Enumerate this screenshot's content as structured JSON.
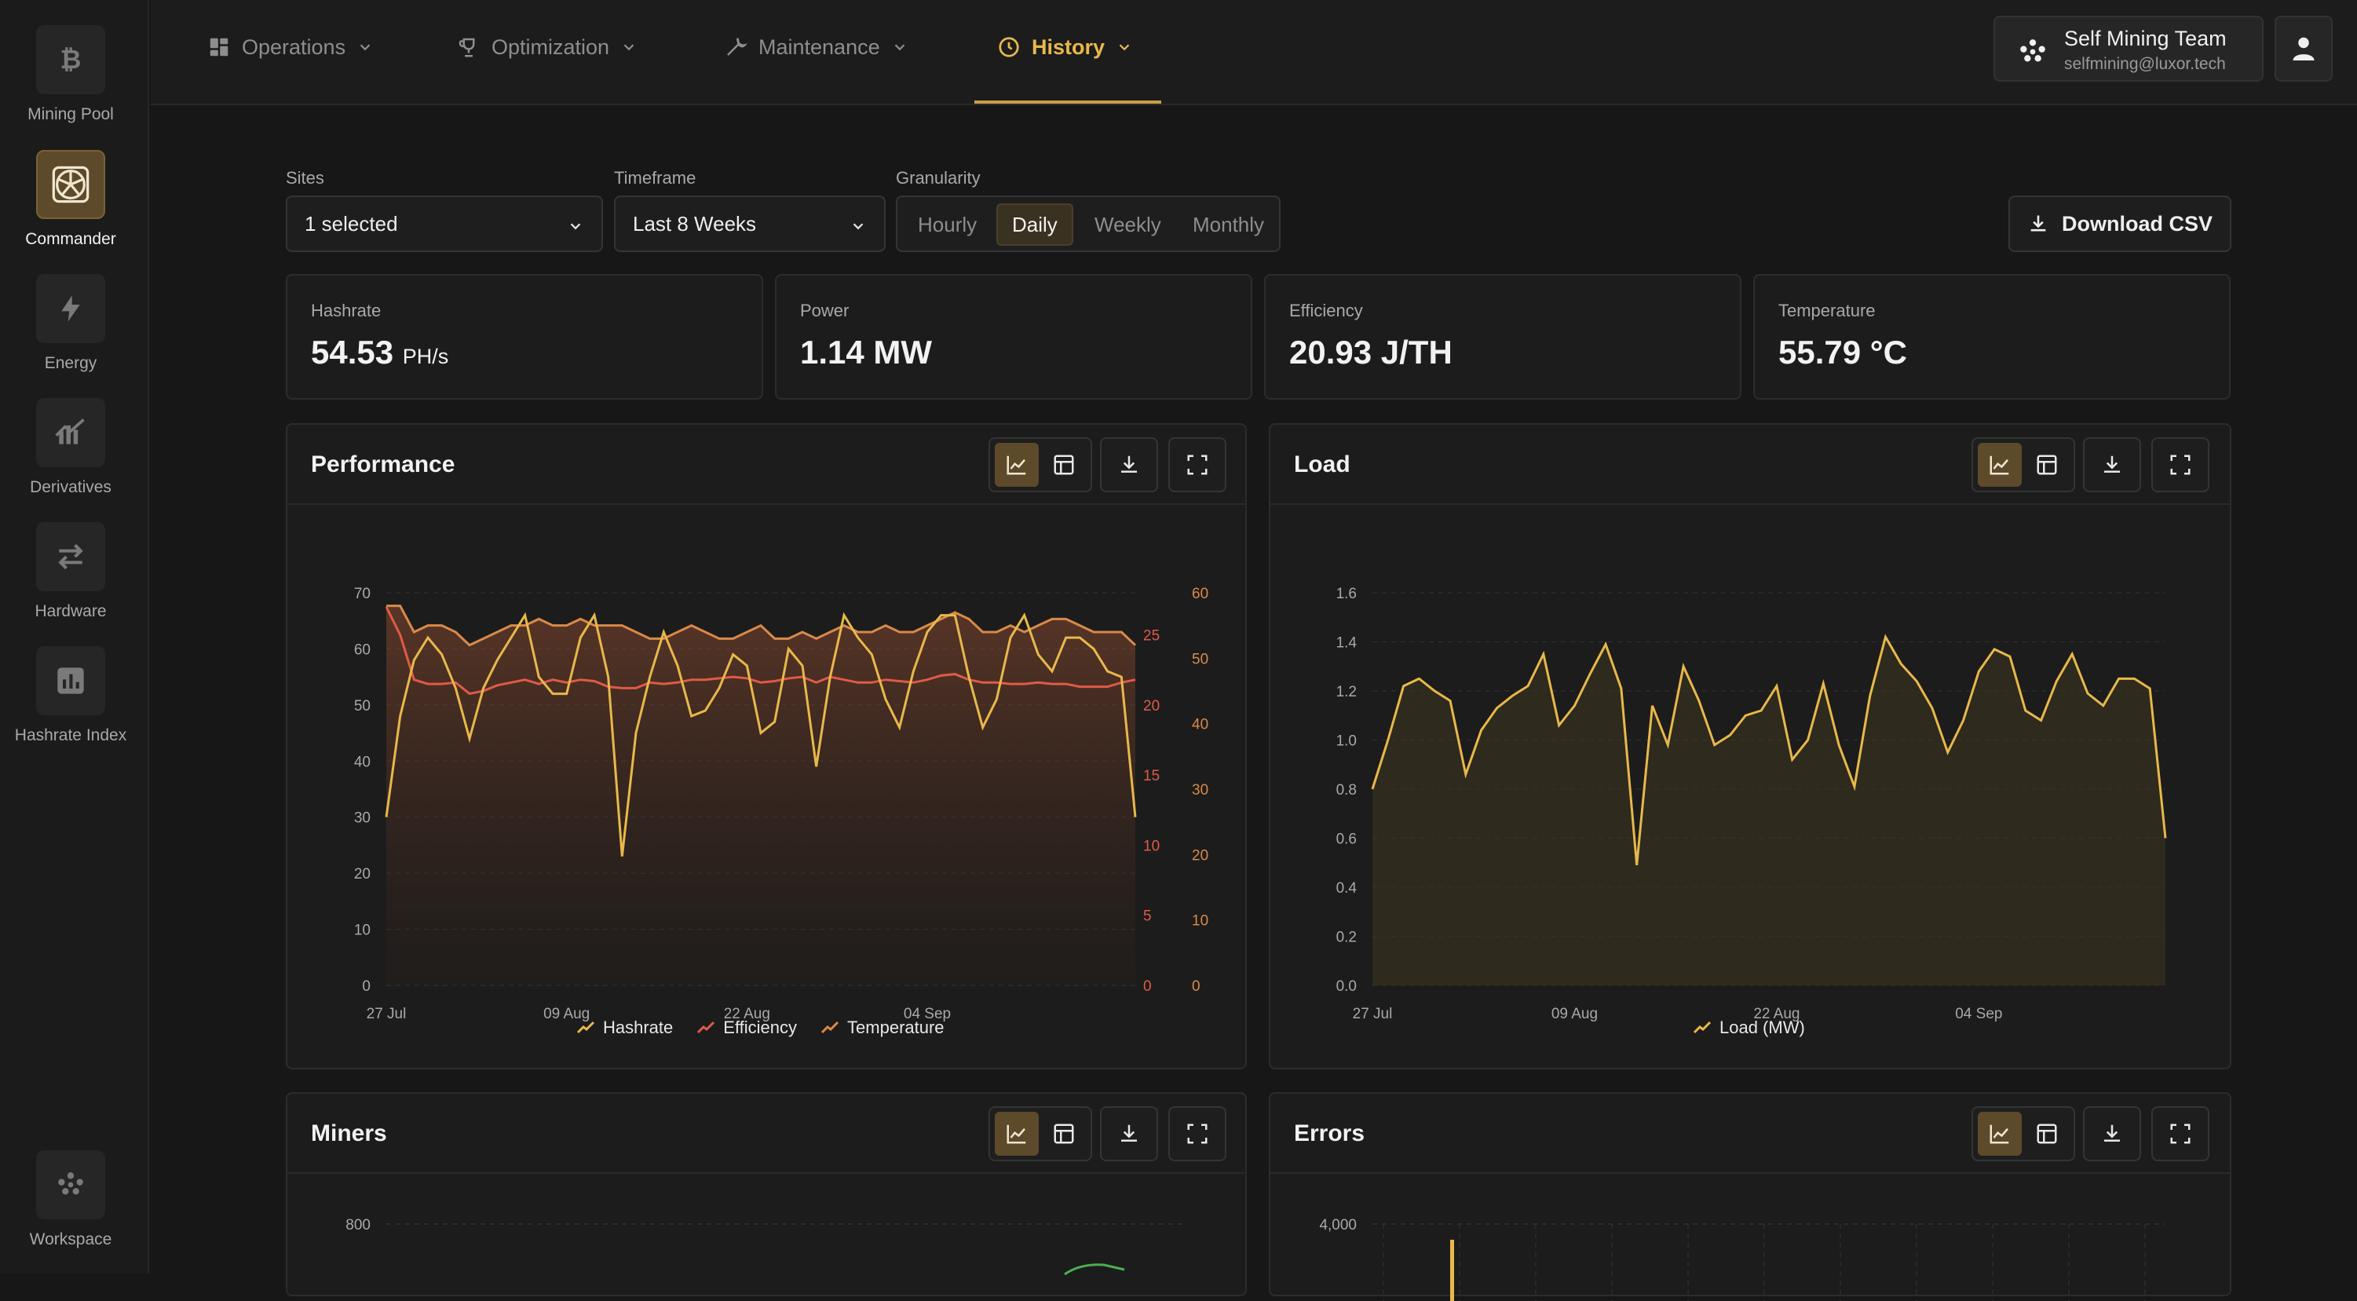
{
  "sidebar": {
    "items": [
      {
        "label": "Mining Pool",
        "icon": "bitcoin-icon",
        "active": false
      },
      {
        "label": "Commander",
        "icon": "fan-icon",
        "active": true
      },
      {
        "label": "Energy",
        "icon": "bolt-icon",
        "active": false
      },
      {
        "label": "Derivatives",
        "icon": "chart-bars-icon",
        "active": false
      },
      {
        "label": "Hardware",
        "icon": "swap-arrows-icon",
        "active": false
      },
      {
        "label": "Hashrate Index",
        "icon": "bar-chart-icon",
        "active": false
      }
    ],
    "workspace_label": "Workspace"
  },
  "nav": {
    "items": [
      {
        "label": "Operations",
        "icon": "grid-icon"
      },
      {
        "label": "Optimization",
        "icon": "trophy-icon"
      },
      {
        "label": "Maintenance",
        "icon": "wrench-icon"
      },
      {
        "label": "History",
        "icon": "clock-icon",
        "active": true
      }
    ]
  },
  "team": {
    "name": "Self Mining Team",
    "email": "selfmining@luxor.tech"
  },
  "filters": {
    "sites_label": "Sites",
    "sites_value": "1 selected",
    "timeframe_label": "Timeframe",
    "timeframe_value": "Last 8 Weeks",
    "granularity_label": "Granularity",
    "granularity_options": [
      "Hourly",
      "Daily",
      "Weekly",
      "Monthly"
    ],
    "granularity_selected": "Daily"
  },
  "download_csv_label": "Download CSV",
  "kpis": [
    {
      "label": "Hashrate",
      "value": "54.53",
      "unit": "PH/s"
    },
    {
      "label": "Power",
      "value": "1.14 MW",
      "unit": ""
    },
    {
      "label": "Efficiency",
      "value": "20.93 J/TH",
      "unit": ""
    },
    {
      "label": "Temperature",
      "value": "55.79 °C",
      "unit": ""
    }
  ],
  "cards": {
    "performance_title": "Performance",
    "load_title": "Load",
    "miners_title": "Miners",
    "errors_title": "Errors"
  },
  "chart_data": [
    {
      "type": "line",
      "title": "Performance",
      "x_ticks": [
        "27 Jul",
        "09 Aug",
        "22 Aug",
        "04 Sep"
      ],
      "y_left_ticks": [
        0,
        10,
        20,
        30,
        40,
        50,
        60,
        70
      ],
      "y_mid_ticks": [
        0,
        5,
        10,
        15,
        20,
        25
      ],
      "y_right_ticks": [
        0,
        10,
        20,
        30,
        40,
        50,
        60
      ],
      "ylim_left": [
        0,
        70
      ],
      "ylim_mid": [
        0,
        28
      ],
      "ylim_right": [
        0,
        60
      ],
      "series": [
        {
          "name": "Hashrate",
          "color": "#e8b84a",
          "axis": "left",
          "values": [
            30,
            48,
            58,
            62,
            59,
            53,
            44,
            53,
            58,
            62,
            66,
            55,
            52,
            52,
            62,
            66,
            55,
            23,
            45,
            55,
            63,
            57,
            48,
            49,
            53,
            59,
            57,
            45,
            47,
            60,
            57,
            39,
            55,
            66,
            62,
            59,
            51,
            46,
            56,
            63,
            66,
            66,
            55,
            46,
            51,
            62,
            66,
            59,
            56,
            62,
            62,
            60,
            56,
            55,
            30
          ]
        },
        {
          "name": "Efficiency",
          "color": "#e05a47",
          "axis": "mid",
          "values": [
            27,
            25,
            21.8,
            21.5,
            21.5,
            21.6,
            20.8,
            21,
            21.4,
            21.6,
            21.8,
            21.5,
            21.8,
            21.6,
            21.8,
            21.7,
            21.3,
            21.2,
            21.2,
            21.6,
            21.5,
            21.6,
            21.8,
            21.8,
            21.9,
            22,
            21.9,
            21.6,
            21.7,
            21.9,
            22,
            21.6,
            22,
            21.8,
            21.6,
            21.6,
            21.8,
            21.7,
            21.6,
            21.8,
            22.1,
            22.2,
            21.8,
            21.6,
            21.6,
            21.5,
            21.5,
            21.6,
            21.5,
            21.5,
            21.3,
            21.3,
            21.3,
            21.6,
            21.8
          ]
        },
        {
          "name": "Temperature",
          "color": "#d98a4a",
          "axis": "right",
          "values": [
            58,
            58,
            54,
            55,
            55,
            54,
            52,
            53,
            54,
            55,
            55,
            56,
            55,
            55,
            56,
            55,
            55,
            55,
            54,
            53,
            53,
            54,
            55,
            54,
            53,
            53,
            54,
            55,
            53,
            53,
            54,
            53,
            54,
            55,
            54,
            54,
            55,
            54,
            54,
            55,
            56,
            57,
            56,
            54,
            54,
            55,
            54,
            55,
            56,
            56,
            55,
            54,
            54,
            54,
            52
          ]
        }
      ]
    },
    {
      "type": "area",
      "title": "Load",
      "x_ticks": [
        "27 Jul",
        "09 Aug",
        "22 Aug",
        "04 Sep"
      ],
      "y_ticks": [
        "0.0",
        "0.2",
        "0.4",
        "0.6",
        "0.8",
        "1.0",
        "1.2",
        "1.4",
        "1.6"
      ],
      "ylim": [
        0,
        1.6
      ],
      "series": [
        {
          "name": "Load (MW)",
          "color": "#e8b84a",
          "values": [
            0.8,
            1.0,
            1.22,
            1.25,
            1.2,
            1.16,
            0.86,
            1.04,
            1.13,
            1.18,
            1.22,
            1.35,
            1.06,
            1.14,
            1.27,
            1.39,
            1.21,
            0.49,
            1.14,
            0.98,
            1.3,
            1.16,
            0.98,
            1.02,
            1.1,
            1.12,
            1.22,
            0.92,
            1.0,
            1.23,
            0.98,
            0.81,
            1.18,
            1.42,
            1.31,
            1.24,
            1.13,
            0.95,
            1.08,
            1.28,
            1.37,
            1.34,
            1.12,
            1.08,
            1.24,
            1.35,
            1.19,
            1.14,
            1.25,
            1.25,
            1.21,
            0.6
          ]
        }
      ]
    },
    {
      "type": "line",
      "title": "Miners",
      "y_ticks_visible": [
        "800"
      ],
      "series": []
    },
    {
      "type": "bar",
      "title": "Errors",
      "y_ticks_visible": [
        "4,000"
      ],
      "series": []
    }
  ]
}
